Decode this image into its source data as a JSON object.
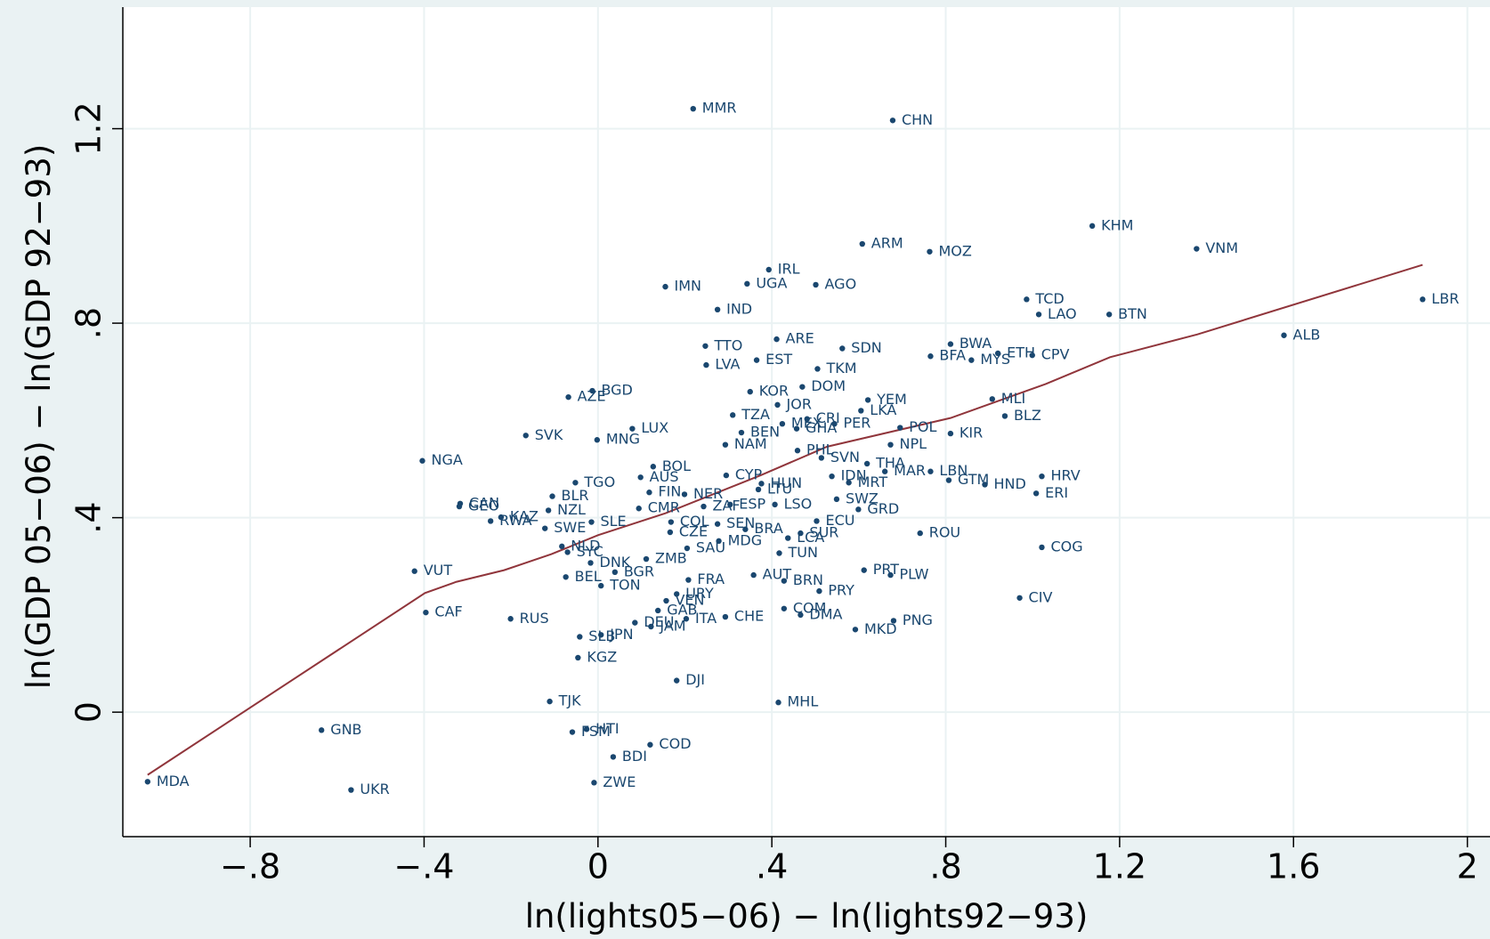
{
  "chart_data": {
    "type": "scatter",
    "x_label": "ln(lights05−06) − ln(lights92−93)",
    "y_label": "ln(GDP 05−06) − ln(GDP 92−93)",
    "xlim": [
      -1.093,
      2.052
    ],
    "ylim": [
      -0.256,
      1.45
    ],
    "xticks": [
      {
        "value": -0.8,
        "label": "−.8"
      },
      {
        "value": -0.4,
        "label": "−.4"
      },
      0,
      {
        "value": 0.4,
        "label": ".4"
      },
      {
        "value": 0.8,
        "label": ".8"
      },
      1.2,
      1.6,
      2
    ],
    "yticks": [
      0,
      {
        "value": 0.4,
        "label": ".4"
      },
      {
        "value": 0.8,
        "label": ".8"
      },
      1.2
    ],
    "grid": true,
    "color": "#1a476f",
    "labels": [
      "MMR",
      "CHN",
      "KHM",
      "VNM",
      "ARM",
      "MOZ",
      "IRL",
      "UGA",
      "AGO",
      "IMN",
      "IND",
      "TCD",
      "LAO",
      "BTN",
      "LBR",
      "ALB",
      "ARE",
      "TTO",
      "SDN",
      "BWA",
      "ETH",
      "CPV",
      "BFA",
      "MYS",
      "EST",
      "LVA",
      "TKM",
      "DOM",
      "KOR",
      "BGD",
      "AZE",
      "MLI",
      "YEM",
      "JOR",
      "LKA",
      "TZA",
      "BLZ",
      "CRI",
      "MEX",
      "GHA",
      "PER",
      "POL",
      "KIR",
      "LUX",
      "BEN",
      "SVK",
      "MNG",
      "NPL",
      "NAM",
      "PHL",
      "SVN",
      "THA",
      "NGA",
      "BOL",
      "MAR",
      "LBN",
      "HRV",
      "GTM",
      "HND",
      "MRT",
      "AUS",
      "CYP",
      "ERI",
      "TGO",
      "HUN",
      "LTU",
      "SWZ",
      "GRD",
      "FIN",
      "NER",
      "BLR",
      "ESP",
      "LSO",
      "ZAF",
      "CAN",
      "GEO",
      "CMR",
      "NZL",
      "ECU",
      "KAZ",
      "RWA",
      "SLE",
      "COL",
      "SEN",
      "BRA",
      "CZE",
      "MDG",
      "SWE",
      "ROU",
      "SUR",
      "LCA",
      "SAU",
      "COG",
      "NLD",
      "SYC",
      "TUN",
      "ZMB",
      "DNK",
      "VUT",
      "BGR",
      "PRT",
      "PLW",
      "AUT",
      "BEL",
      "FRA",
      "BRN",
      "TON",
      "PRY",
      "URY",
      "CIV",
      "VEN",
      "CAF",
      "COM",
      "GAB",
      "DMA",
      "CHE",
      "ITA",
      "RUS",
      "PNG",
      "DEU",
      "JAM",
      "MKD",
      "JPN",
      "SLB",
      "KGZ",
      "DJI",
      "TJK",
      "MHL",
      "GNB",
      "HTI",
      "FSM",
      "COD",
      "BDI",
      "MDA",
      "ZWE",
      "UKR",
      "IDN"
    ],
    "x": [
      0.219,
      0.678,
      1.137,
      1.377,
      0.608,
      0.763,
      0.393,
      0.343,
      0.501,
      0.155,
      0.275,
      0.986,
      1.014,
      1.176,
      1.897,
      1.578,
      0.411,
      0.247,
      0.562,
      0.811,
      0.92,
      0.999,
      0.765,
      0.859,
      0.365,
      0.249,
      0.505,
      0.47,
      0.35,
      -0.013,
      -0.068,
      0.907,
      0.621,
      0.413,
      0.605,
      0.31,
      0.936,
      0.481,
      0.424,
      0.457,
      0.544,
      0.695,
      0.811,
      0.079,
      0.33,
      -0.166,
      -0.002,
      0.673,
      0.293,
      0.459,
      0.514,
      0.619,
      -0.404,
      0.127,
      0.66,
      0.765,
      1.021,
      0.807,
      0.89,
      0.577,
      0.098,
      0.295,
      1.008,
      -0.052,
      0.376,
      0.369,
      0.549,
      0.599,
      0.118,
      0.199,
      -0.105,
      0.304,
      0.407,
      0.243,
      -0.317,
      -0.319,
      0.094,
      -0.114,
      0.503,
      -0.223,
      -0.247,
      -0.015,
      0.168,
      0.275,
      0.339,
      0.166,
      0.278,
      -0.122,
      0.741,
      0.466,
      0.437,
      0.205,
      1.021,
      -0.083,
      -0.07,
      0.417,
      0.111,
      -0.017,
      -0.422,
      0.039,
      0.612,
      0.673,
      0.358,
      -0.074,
      0.208,
      0.428,
      0.007,
      0.509,
      0.181,
      0.97,
      0.157,
      -0.396,
      0.428,
      0.138,
      0.466,
      0.293,
      0.203,
      -0.201,
      0.68,
      0.085,
      0.122,
      0.592,
      0.007,
      -0.042,
      -0.046,
      0.181,
      -0.111,
      0.415,
      -0.636,
      -0.026,
      -0.059,
      0.12,
      0.035,
      -1.036,
      -0.009,
      -0.568,
      0.538
    ],
    "y": [
      1.241,
      1.217,
      1.0,
      0.953,
      0.963,
      0.947,
      0.91,
      0.881,
      0.879,
      0.875,
      0.828,
      0.849,
      0.818,
      0.818,
      0.849,
      0.775,
      0.767,
      0.753,
      0.748,
      0.757,
      0.738,
      0.734,
      0.732,
      0.724,
      0.724,
      0.714,
      0.706,
      0.669,
      0.659,
      0.661,
      0.648,
      0.644,
      0.642,
      0.632,
      0.62,
      0.611,
      0.609,
      0.603,
      0.593,
      0.583,
      0.593,
      0.585,
      0.573,
      0.583,
      0.575,
      0.569,
      0.56,
      0.55,
      0.55,
      0.538,
      0.523,
      0.511,
      0.517,
      0.505,
      0.495,
      0.495,
      0.485,
      0.477,
      0.468,
      0.472,
      0.483,
      0.487,
      0.45,
      0.472,
      0.47,
      0.458,
      0.438,
      0.417,
      0.452,
      0.448,
      0.444,
      0.427,
      0.427,
      0.423,
      0.429,
      0.423,
      0.419,
      0.415,
      0.393,
      0.401,
      0.393,
      0.391,
      0.391,
      0.387,
      0.376,
      0.37,
      0.352,
      0.378,
      0.368,
      0.368,
      0.358,
      0.337,
      0.339,
      0.341,
      0.329,
      0.327,
      0.315,
      0.307,
      0.29,
      0.288,
      0.292,
      0.282,
      0.282,
      0.278,
      0.272,
      0.27,
      0.26,
      0.249,
      0.243,
      0.235,
      0.229,
      0.205,
      0.213,
      0.209,
      0.2,
      0.196,
      0.192,
      0.192,
      0.188,
      0.184,
      0.176,
      0.17,
      0.159,
      0.155,
      0.112,
      0.065,
      0.022,
      0.02,
      -0.037,
      -0.035,
      -0.041,
      -0.067,
      -0.092,
      -0.143,
      -0.145,
      -0.16,
      0.485
    ],
    "fit_color": "#90353b",
    "fit_x": [
      -1.036,
      -0.398,
      -0.326,
      -0.216,
      -0.107,
      0,
      0.155,
      0.374,
      0.527,
      0.811,
      1.03,
      1.178,
      1.379,
      1.897
    ],
    "fit_y": [
      -0.129,
      0.245,
      0.268,
      0.292,
      0.325,
      0.364,
      0.409,
      0.487,
      0.546,
      0.605,
      0.675,
      0.73,
      0.777,
      0.92
    ]
  }
}
